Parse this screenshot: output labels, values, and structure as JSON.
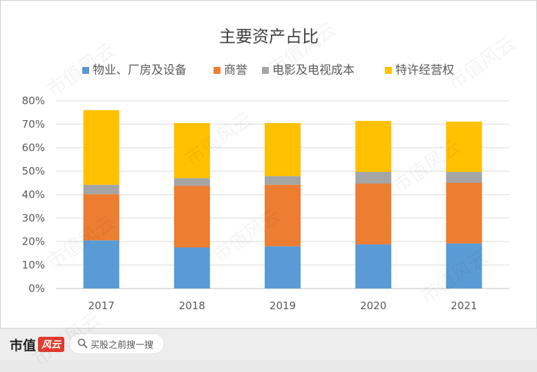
{
  "chart_data": {
    "type": "bar",
    "stacked": true,
    "title": "主要资产占比",
    "categories": [
      "2017",
      "2018",
      "2019",
      "2020",
      "2021"
    ],
    "series": [
      {
        "name": "物业、厂房及设备",
        "color": "#5b9bd5",
        "values": [
          20.5,
          17.5,
          18.0,
          18.8,
          19.2
        ]
      },
      {
        "name": "商誉",
        "color": "#ed7d31",
        "values": [
          19.7,
          26.3,
          26.2,
          25.9,
          25.8
        ]
      },
      {
        "name": "电影及电视成本",
        "color": "#a5a5a5",
        "values": [
          4.0,
          3.2,
          3.7,
          5.0,
          4.7
        ]
      },
      {
        "name": "特许经营权",
        "color": "#ffc000",
        "values": [
          31.8,
          23.5,
          22.6,
          21.7,
          21.4
        ]
      }
    ],
    "ylim": [
      0,
      80
    ],
    "yticks": [
      "0%",
      "10%",
      "20%",
      "30%",
      "40%",
      "50%",
      "60%",
      "70%",
      "80%"
    ],
    "grid": true,
    "legend": "top"
  },
  "footer": {
    "brand": "市值",
    "brand_logo": "风云",
    "search_text": "买股之前搜一搜"
  },
  "watermark": "市值风云"
}
